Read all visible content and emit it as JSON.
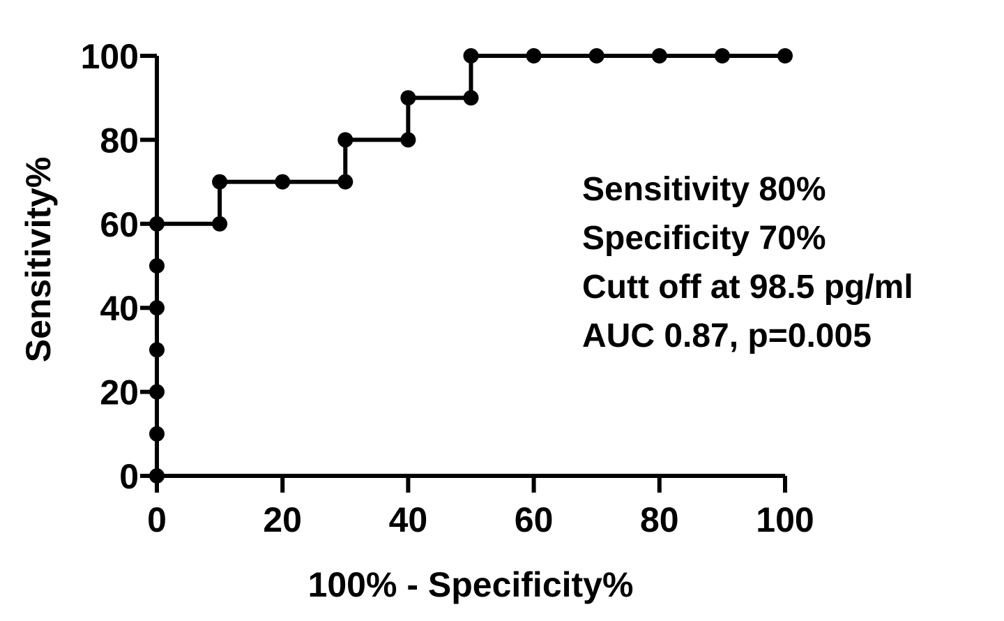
{
  "chart_data": {
    "type": "line",
    "xlabel": "100% - Specificity%",
    "ylabel": "Sensitivity%",
    "xlim": [
      0,
      100
    ],
    "ylim": [
      0,
      100
    ],
    "xticks": [
      "0",
      "20",
      "40",
      "60",
      "80",
      "100"
    ],
    "yticks": [
      "0",
      "20",
      "40",
      "60",
      "80",
      "100"
    ],
    "grid": false,
    "legend": "none",
    "series": [
      {
        "step": "vertical-first",
        "color": "#000000",
        "points": [
          {
            "x": 0,
            "y": 0
          },
          {
            "x": 0,
            "y": 10
          },
          {
            "x": 0,
            "y": 20
          },
          {
            "x": 0,
            "y": 30
          },
          {
            "x": 0,
            "y": 40
          },
          {
            "x": 0,
            "y": 50
          },
          {
            "x": 0,
            "y": 60
          },
          {
            "x": 10,
            "y": 60
          },
          {
            "x": 10,
            "y": 70
          },
          {
            "x": 20,
            "y": 70
          },
          {
            "x": 30,
            "y": 70
          },
          {
            "x": 30,
            "y": 80
          },
          {
            "x": 40,
            "y": 80
          },
          {
            "x": 40,
            "y": 90
          },
          {
            "x": 50,
            "y": 90
          },
          {
            "x": 50,
            "y": 100
          },
          {
            "x": 60,
            "y": 100
          },
          {
            "x": 70,
            "y": 100
          },
          {
            "x": 80,
            "y": 100
          },
          {
            "x": 90,
            "y": 100
          },
          {
            "x": 100,
            "y": 100
          }
        ]
      }
    ],
    "annotations": [
      "Sensitivity 80%",
      "Specificity 70%",
      "Cutt off at 98.5 pg/ml",
      "AUC 0.87, p=0.005"
    ]
  }
}
